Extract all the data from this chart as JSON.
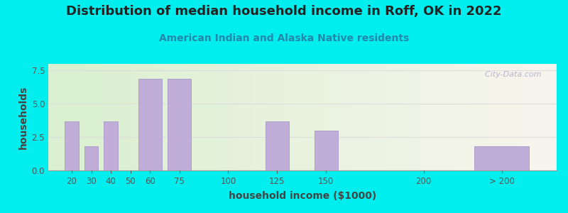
{
  "title": "Distribution of median household income in Roff, OK in 2022",
  "subtitle": "American Indian and Alaska Native residents",
  "xlabel": "household income ($1000)",
  "ylabel": "households",
  "background_outer": "#00EEEE",
  "bg_left_color": "#daf0d0",
  "bg_right_color": "#f8f5ee",
  "bar_color": "#c0aed8",
  "bar_edge_color": "#a898c8",
  "values": [
    3.7,
    1.8,
    3.7,
    0,
    6.9,
    6.9,
    0,
    3.7,
    3.0,
    0,
    1.8
  ],
  "bar_positions": [
    20,
    30,
    40,
    50,
    60,
    75,
    100,
    125,
    150,
    200,
    240
  ],
  "bar_widths": [
    7,
    7,
    7,
    7,
    12,
    12,
    7,
    12,
    12,
    7,
    28
  ],
  "ylim": [
    0,
    8
  ],
  "yticks": [
    0,
    2.5,
    5,
    7.5
  ],
  "xlim": [
    8,
    268
  ],
  "xtick_pos": [
    20,
    30,
    40,
    50,
    60,
    75,
    100,
    125,
    150,
    200,
    240
  ],
  "xtick_labels": [
    "20",
    "30",
    "40",
    "50",
    "60",
    "75",
    "100",
    "125",
    "150",
    "200",
    "> 200"
  ],
  "title_fontsize": 13,
  "subtitle_fontsize": 10,
  "axis_label_fontsize": 10,
  "tick_fontsize": 8.5,
  "title_color": "#222222",
  "subtitle_color": "#2288aa",
  "axis_label_color": "#444444",
  "tick_color": "#555555",
  "grid_color": "#dddddd",
  "watermark_text": "  City-Data.com",
  "watermark_color": "#aaaacc"
}
